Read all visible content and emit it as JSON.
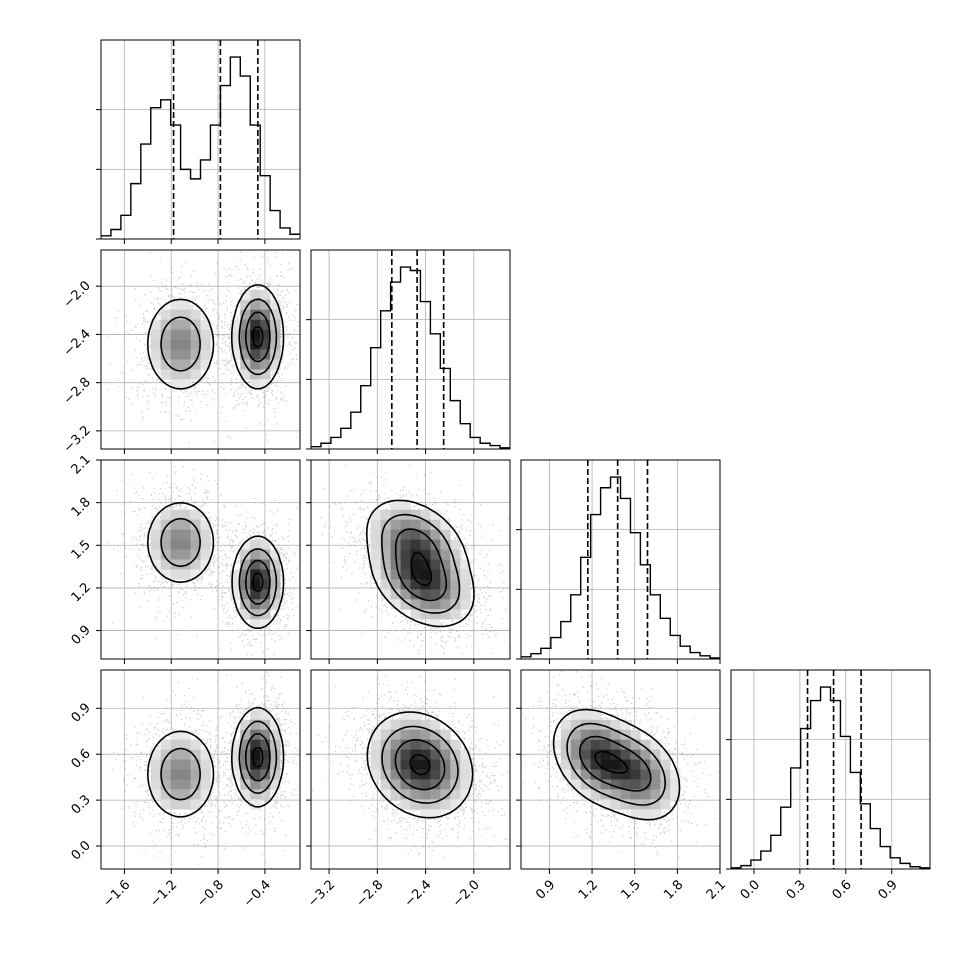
{
  "chart_data": {
    "type": "corner",
    "n_params": 4,
    "colors": {
      "ink": "#000000",
      "grid": "#b0b0b0",
      "background": "#ffffff"
    },
    "params": [
      {
        "range": [
          -1.8,
          -0.1
        ],
        "ticks": [
          "-1.6",
          "-1.2",
          "-0.8",
          "-0.4"
        ],
        "tick_values": [
          -1.6,
          -1.2,
          -0.8,
          -0.4
        ],
        "quantiles": [
          -1.18,
          -0.78,
          -0.46
        ]
      },
      {
        "range": [
          -3.35,
          -1.7
        ],
        "ticks": [
          "-3.2",
          "-2.8",
          "-2.4",
          "-2.0"
        ],
        "tick_values": [
          -3.2,
          -2.8,
          -2.4,
          -2.0
        ],
        "quantiles": [
          -2.68,
          -2.47,
          -2.25
        ]
      },
      {
        "range": [
          0.7,
          2.1
        ],
        "ticks": [
          "0.9",
          "1.2",
          "1.5",
          "1.8",
          "2.1"
        ],
        "tick_values": [
          0.9,
          1.2,
          1.5,
          1.8,
          2.1
        ],
        "quantiles": [
          1.17,
          1.38,
          1.59
        ]
      },
      {
        "range": [
          -0.15,
          1.15
        ],
        "ticks": [
          "0.0",
          "0.3",
          "0.6",
          "0.9"
        ],
        "tick_values": [
          0.0,
          0.3,
          0.6,
          0.9
        ],
        "quantiles": [
          0.35,
          0.52,
          0.7
        ]
      }
    ],
    "histograms": [
      {
        "bins": 20,
        "counts": [
          2,
          6,
          15,
          35,
          60,
          83,
          88,
          72,
          44,
          38,
          50,
          72,
          97,
          115,
          103,
          72,
          40,
          18,
          7,
          3
        ]
      },
      {
        "bins": 20,
        "counts": [
          2,
          5,
          10,
          18,
          32,
          55,
          88,
          120,
          145,
          158,
          155,
          128,
          100,
          70,
          42,
          22,
          10,
          5,
          3,
          1
        ]
      },
      {
        "bins": 20,
        "counts": [
          2,
          5,
          10,
          20,
          35,
          60,
          95,
          135,
          160,
          170,
          150,
          118,
          88,
          60,
          38,
          22,
          12,
          6,
          3,
          1
        ]
      },
      {
        "bins": 20,
        "counts": [
          1,
          3,
          8,
          16,
          30,
          55,
          90,
          125,
          150,
          162,
          150,
          118,
          86,
          58,
          36,
          20,
          10,
          5,
          2,
          1
        ]
      }
    ],
    "components": [
      {
        "weight": 0.45,
        "mean": [
          -1.12,
          -2.48,
          1.52,
          0.47
        ],
        "sd": [
          0.15,
          0.2,
          0.15,
          0.15
        ],
        "corr01": 0.0,
        "corr12": -0.35,
        "corr23": -0.3
      },
      {
        "weight": 0.55,
        "mean": [
          -0.46,
          -2.42,
          1.24,
          0.58
        ],
        "sd": [
          0.1,
          0.2,
          0.15,
          0.15
        ],
        "corr01": 0.0,
        "corr12": -0.35,
        "corr23": -0.3
      }
    ]
  }
}
